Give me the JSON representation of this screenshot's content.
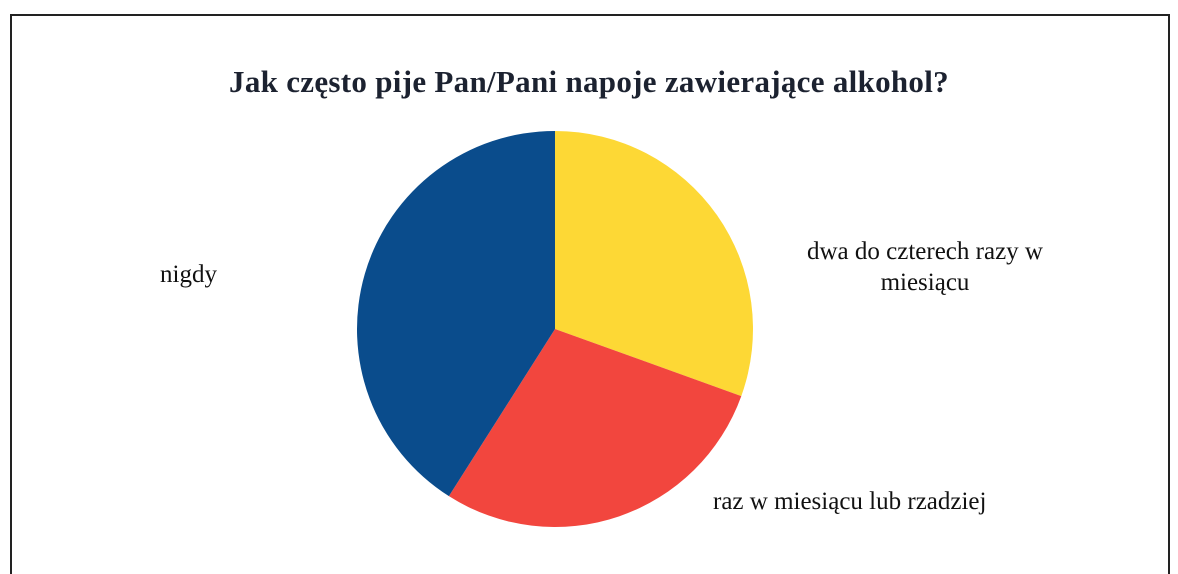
{
  "chart_data": {
    "type": "pie",
    "title": "Jak często pije Pan/Pani napoje zawierające alkohol?",
    "slices": [
      {
        "label": "dwa do czterech razy w miesiącu",
        "value": 30.5,
        "color": "#fdd835"
      },
      {
        "label": "raz w miesiącu lub rzadziej",
        "value": 28.5,
        "color": "#f2463e"
      },
      {
        "label": "nigdy",
        "value": 41.0,
        "color": "#0a4c8c"
      }
    ],
    "start_angle_deg": 0,
    "direction": "clockwise",
    "legend": "none",
    "data_labels": "category names outside slices"
  }
}
